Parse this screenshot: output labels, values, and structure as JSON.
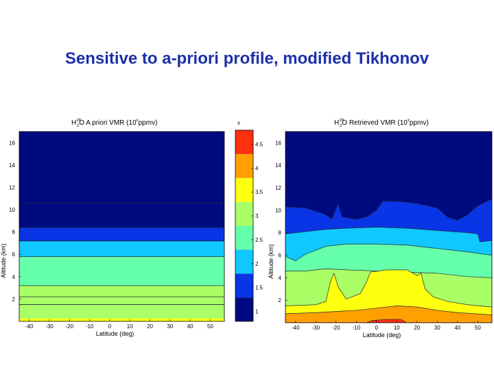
{
  "slide": {
    "title": "Sensitive to a-priori profile, modified Tikhonov"
  },
  "colorscale": [
    {
      "level": 1,
      "color": "#000a80"
    },
    {
      "level": 1.5,
      "color": "#0a35e6"
    },
    {
      "level": 2,
      "color": "#10c8ff"
    },
    {
      "level": 2.5,
      "color": "#66ffaa"
    },
    {
      "level": 3,
      "color": "#aaff66"
    },
    {
      "level": 3.5,
      "color": "#ffff10"
    },
    {
      "level": 4,
      "color": "#ffa000"
    },
    {
      "level": 4.5,
      "color": "#ff3010"
    }
  ],
  "chart_data": [
    {
      "type": "heatmap",
      "title": "H₂¹⁶O A priori VMR (10ˣppmv)",
      "title_parts": {
        "h": "H",
        "sub": "2",
        "sup": "16",
        "rest1": "O A priori VMR (10",
        "supx": "x",
        "rest2": "ppmv)"
      },
      "xlabel": "Latitude (deg)",
      "ylabel": "Altitude (km)",
      "xlim": [
        -45,
        57
      ],
      "ylim": [
        0,
        17
      ],
      "xticks": [
        -40,
        -30,
        -20,
        -10,
        0,
        10,
        20,
        30,
        40,
        50
      ],
      "yticks": [
        2,
        4,
        6,
        8,
        10,
        12,
        14,
        16
      ],
      "bands": [
        {
          "y0": 0,
          "y1": 0.25,
          "level": 3.5
        },
        {
          "y0": 0.25,
          "y1": 3.2,
          "level": 3
        },
        {
          "y0": 3.2,
          "y1": 5.8,
          "level": 2.5
        },
        {
          "y0": 5.8,
          "y1": 7.2,
          "level": 2
        },
        {
          "y0": 7.2,
          "y1": 8.4,
          "level": 1.5
        },
        {
          "y0": 8.4,
          "y1": 17,
          "level": 1
        }
      ],
      "contour_altitudes": [
        1.5,
        2.2,
        3.2,
        5.8,
        7.2,
        8.4,
        10.6
      ]
    },
    {
      "type": "heatmap",
      "title": "H₂¹⁶O Retrieved VMR (10ˣppmv)",
      "title_parts": {
        "h": "H",
        "sub": "2",
        "sup": "16",
        "rest1": "O Retrieved VMR (10",
        "supx": "x",
        "rest2": "ppmv)"
      },
      "xlabel": "Latitude (deg)",
      "ylabel": "Altitude (km)",
      "xlim": [
        -45,
        57
      ],
      "ylim": [
        0,
        17
      ],
      "xticks": [
        -40,
        -30,
        -20,
        -10,
        0,
        10,
        20,
        30,
        40,
        50
      ],
      "yticks": [
        2,
        4,
        6,
        8,
        10,
        12,
        14,
        16
      ],
      "layers": [
        {
          "level": 1.5,
          "top": [
            [
              -45,
              10.3
            ],
            [
              -35,
              10.2
            ],
            [
              -25,
              9.6
            ],
            [
              -22,
              9.2
            ],
            [
              -19,
              10.6
            ],
            [
              -17,
              9.4
            ],
            [
              -10,
              9.2
            ],
            [
              -5,
              9.4
            ],
            [
              0,
              10.0
            ],
            [
              3,
              10.8
            ],
            [
              10,
              10.8
            ],
            [
              20,
              10.6
            ],
            [
              30,
              10.2
            ],
            [
              35,
              9.4
            ],
            [
              40,
              9.1
            ],
            [
              45,
              9.6
            ],
            [
              50,
              10.4
            ],
            [
              57,
              11.0
            ]
          ]
        },
        {
          "level": 2,
          "top": [
            [
              -45,
              7.9
            ],
            [
              -35,
              8.1
            ],
            [
              -25,
              8.3
            ],
            [
              -15,
              8.4
            ],
            [
              0,
              8.5
            ],
            [
              15,
              8.4
            ],
            [
              30,
              8.2
            ],
            [
              45,
              8.0
            ],
            [
              50,
              7.9
            ],
            [
              51,
              7.2
            ],
            [
              57,
              7.3
            ]
          ]
        },
        {
          "level": 2.5,
          "top": [
            [
              -45,
              5.9
            ],
            [
              -40,
              5.5
            ],
            [
              -35,
              6.1
            ],
            [
              -25,
              6.8
            ],
            [
              -15,
              7.0
            ],
            [
              0,
              7.0
            ],
            [
              15,
              6.9
            ],
            [
              30,
              6.6
            ],
            [
              45,
              6.3
            ],
            [
              57,
              6.0
            ]
          ]
        },
        {
          "level": 3,
          "top": [
            [
              -45,
              4.6
            ],
            [
              -35,
              4.6
            ],
            [
              -25,
              4.8
            ],
            [
              -15,
              4.7
            ],
            [
              0,
              4.6
            ],
            [
              15,
              4.5
            ],
            [
              30,
              4.4
            ],
            [
              45,
              4.1
            ],
            [
              57,
              4.0
            ]
          ]
        },
        {
          "level": 3.5,
          "top": [
            [
              -45,
              1.5
            ],
            [
              -30,
              1.6
            ],
            [
              -25,
              1.9
            ],
            [
              -23,
              3.5
            ],
            [
              -21,
              4.4
            ],
            [
              -19,
              3.2
            ],
            [
              -15,
              2.1
            ],
            [
              -8,
              2.6
            ],
            [
              -5,
              3.6
            ],
            [
              -3,
              4.5
            ],
            [
              5,
              4.7
            ],
            [
              15,
              4.7
            ],
            [
              20,
              4.2
            ],
            [
              22,
              4.4
            ],
            [
              24,
              3.0
            ],
            [
              28,
              2.3
            ],
            [
              35,
              1.9
            ],
            [
              45,
              1.6
            ],
            [
              57,
              1.4
            ]
          ]
        },
        {
          "level": 4,
          "top": [
            [
              -45,
              0.8
            ],
            [
              -30,
              0.9
            ],
            [
              -20,
              1.0
            ],
            [
              -10,
              1.1
            ],
            [
              0,
              1.3
            ],
            [
              10,
              1.5
            ],
            [
              20,
              1.4
            ],
            [
              30,
              1.1
            ],
            [
              40,
              0.9
            ],
            [
              57,
              0.7
            ]
          ]
        },
        {
          "level": 4.5,
          "top": [
            [
              -45,
              0.0
            ],
            [
              -5,
              0.0
            ],
            [
              -2,
              0.2
            ],
            [
              5,
              0.3
            ],
            [
              12,
              0.3
            ],
            [
              15,
              0.0
            ],
            [
              57,
              0.0
            ]
          ]
        }
      ]
    }
  ],
  "colorbar": {
    "title": "x",
    "ticks": [
      "1",
      "1.5",
      "2",
      "2.5",
      "3",
      "3.5",
      "4",
      "4.5"
    ]
  }
}
